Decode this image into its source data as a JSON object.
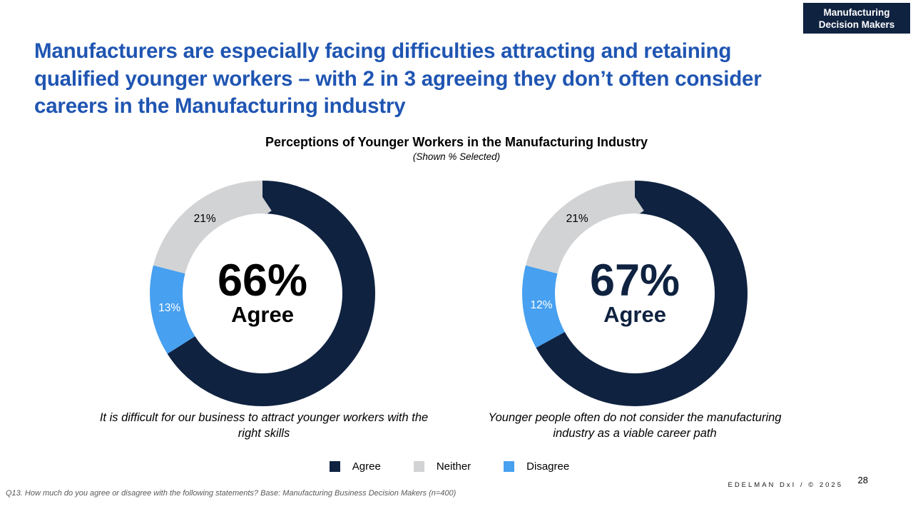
{
  "slide": {
    "badge": {
      "line1": "Manufacturing",
      "line2": "Decision Makers",
      "bg_color": "#0F2240",
      "text_color": "#FFFFFF"
    },
    "title": "Manufacturers are especially facing difficulties attracting and retaining\nqualified younger workers – with 2 in 3 agreeing they don’t often consider\ncareers in the Manufacturing industry",
    "title_color": "#1F55B2",
    "chart_header": {
      "title": "Perceptions of Younger Workers in the Manufacturing Industry",
      "subtitle": "(Shown % Selected)"
    },
    "footer": {
      "source": "Q13. How much do you agree or disagree with the following statements? Base: Manufacturing Business Decision Makers  (n=400)",
      "brand": "EDELMAN DxI / © 2025",
      "page_number": "28"
    }
  },
  "legend": {
    "items": [
      {
        "label": "Agree",
        "color": "#0F2240"
      },
      {
        "label": "Neither",
        "color": "#D2D3D4"
      },
      {
        "label": "Disagree",
        "color": "#47A0F0"
      }
    ]
  },
  "chart_data": [
    {
      "type": "pie",
      "variant": "donut",
      "title": "It is difficult for our business to attract younger workers with the right skills",
      "center_value": "66%",
      "center_label": "Agree",
      "center_color": "#000000",
      "start_angle_deg": 0,
      "direction": "clockwise",
      "segments": [
        {
          "name": "Agree",
          "value": 66,
          "color": "#0F2240",
          "data_label": null
        },
        {
          "name": "Disagree",
          "value": 13,
          "color": "#47A0F0",
          "data_label": "13%",
          "label_color": "#FFFFFF"
        },
        {
          "name": "Neither",
          "value": 21,
          "color": "#D2D3D4",
          "data_label": "21%",
          "label_color": "#000000"
        }
      ]
    },
    {
      "type": "pie",
      "variant": "donut",
      "title": "Younger people often do not consider the manufacturing industry as a viable career path",
      "center_value": "67%",
      "center_label": "Agree",
      "center_color": "#0F2240",
      "start_angle_deg": 0,
      "direction": "clockwise",
      "segments": [
        {
          "name": "Agree",
          "value": 67,
          "color": "#0F2240",
          "data_label": null
        },
        {
          "name": "Disagree",
          "value": 12,
          "color": "#47A0F0",
          "data_label": "12%",
          "label_color": "#FFFFFF"
        },
        {
          "name": "Neither",
          "value": 21,
          "color": "#D2D3D4",
          "data_label": "21%",
          "label_color": "#000000"
        }
      ]
    }
  ]
}
